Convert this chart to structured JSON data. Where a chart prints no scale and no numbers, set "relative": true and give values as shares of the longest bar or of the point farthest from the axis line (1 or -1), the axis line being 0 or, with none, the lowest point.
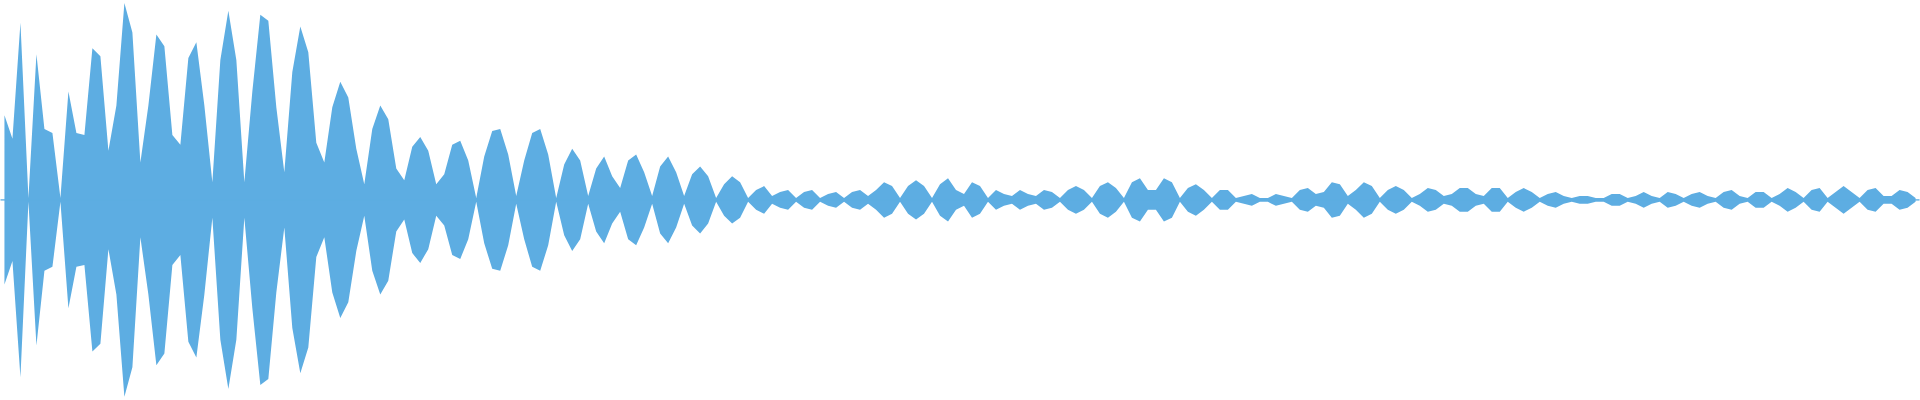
{
  "chart_data": {
    "type": "area",
    "relative": true,
    "categories": [
      null,
      null,
      null,
      null,
      null,
      null,
      null,
      null,
      null,
      null,
      null,
      null,
      null,
      null,
      null,
      null,
      null,
      null,
      null,
      null,
      null,
      null,
      null,
      null,
      null,
      null,
      null,
      null,
      null,
      null,
      null,
      null,
      null,
      null,
      null,
      null,
      null,
      null,
      null,
      null,
      null,
      null,
      null,
      null,
      null,
      null,
      null,
      null,
      null,
      null,
      null,
      null,
      null,
      null,
      null,
      null,
      null,
      null,
      null,
      null,
      null,
      null,
      null,
      null,
      null,
      null,
      null,
      null,
      null,
      null,
      null,
      null,
      null,
      null,
      null,
      null,
      null,
      null,
      null,
      null,
      null,
      null,
      null,
      null,
      null,
      null,
      null,
      null,
      null,
      null,
      null,
      null,
      null,
      null,
      null,
      null,
      null,
      null,
      null,
      null,
      null,
      null,
      null,
      null,
      null,
      null,
      null,
      null,
      null,
      null,
      null,
      null,
      null,
      null,
      null,
      null,
      null,
      null,
      null,
      null,
      null,
      null,
      null,
      null,
      null,
      null,
      null,
      null,
      null,
      null,
      null,
      null,
      null,
      null,
      null,
      null,
      null,
      null,
      null,
      null,
      null,
      null,
      null,
      null,
      null,
      null,
      null,
      null,
      null,
      null,
      null,
      null,
      null,
      null,
      null,
      null,
      null,
      null,
      null,
      null,
      null,
      null,
      null,
      null,
      null,
      null,
      null,
      null,
      null,
      null,
      null,
      null,
      null,
      null,
      null,
      null,
      null,
      null,
      null,
      null,
      null,
      null,
      null,
      null,
      null,
      null,
      null,
      null,
      null,
      null,
      null,
      null,
      null,
      null,
      null,
      null,
      null,
      null,
      null,
      null,
      null,
      null,
      null,
      null,
      null,
      null,
      null,
      null,
      null,
      null,
      null,
      null,
      null,
      null,
      null,
      null,
      null,
      null,
      null,
      null,
      null,
      null,
      null,
      null,
      null,
      null,
      null,
      null,
      null,
      null,
      null,
      null,
      null,
      null,
      null,
      null,
      null,
      null,
      null,
      null
    ],
    "ref_lines": [
      {
        "axis": "y",
        "value": 0,
        "color": "#5dade2"
      }
    ],
    "series": [
      {
        "color": "#5dade2",
        "values": [
          0.43,
          0.31,
          0.9,
          0.01,
          0.74,
          0.36,
          0.34,
          0.01,
          0.55,
          0.34,
          0.33,
          0.77,
          0.73,
          0.25,
          0.48,
          1.0,
          0.85,
          0.19,
          0.48,
          0.84,
          0.78,
          0.33,
          0.28,
          0.72,
          0.8,
          0.48,
          0.09,
          0.71,
          0.96,
          0.71,
          0.09,
          0.55,
          0.94,
          0.91,
          0.47,
          0.14,
          0.65,
          0.88,
          0.75,
          0.29,
          0.19,
          0.47,
          0.6,
          0.52,
          0.26,
          0.08,
          0.36,
          0.48,
          0.41,
          0.16,
          0.1,
          0.27,
          0.32,
          0.25,
          0.08,
          0.13,
          0.28,
          0.3,
          0.2,
          0.01,
          0.22,
          0.35,
          0.36,
          0.23,
          0.02,
          0.2,
          0.34,
          0.36,
          0.23,
          0.01,
          0.18,
          0.26,
          0.2,
          0.02,
          0.16,
          0.22,
          0.12,
          0.06,
          0.2,
          0.23,
          0.14,
          0.02,
          0.17,
          0.22,
          0.14,
          0.02,
          0.13,
          0.17,
          0.12,
          0.01,
          0.08,
          0.12,
          0.09,
          0.01,
          0.05,
          0.07,
          0.02,
          0.04,
          0.05,
          0.01,
          0.04,
          0.05,
          0.01,
          0.03,
          0.04,
          0.01,
          0.04,
          0.05,
          0.02,
          0.05,
          0.09,
          0.07,
          0.01,
          0.07,
          0.1,
          0.07,
          0.01,
          0.08,
          0.11,
          0.05,
          0.03,
          0.09,
          0.07,
          0.01,
          0.05,
          0.03,
          0.02,
          0.05,
          0.03,
          0.02,
          0.05,
          0.04,
          0.01,
          0.05,
          0.07,
          0.05,
          0.01,
          0.07,
          0.09,
          0.06,
          0.01,
          0.09,
          0.11,
          0.05,
          0.05,
          0.11,
          0.09,
          0.01,
          0.06,
          0.08,
          0.05,
          0.01,
          0.05,
          0.05,
          0.01,
          0.02,
          0.03,
          0.01,
          0.01,
          0.03,
          0.02,
          0.01,
          0.05,
          0.06,
          0.03,
          0.04,
          0.09,
          0.08,
          0.02,
          0.05,
          0.09,
          0.07,
          0.01,
          0.05,
          0.07,
          0.05,
          0.01,
          0.03,
          0.06,
          0.05,
          0.02,
          0.03,
          0.06,
          0.06,
          0.03,
          0.02,
          0.06,
          0.06,
          0.01,
          0.04,
          0.06,
          0.04,
          0.01,
          0.03,
          0.04,
          0.02,
          0.01,
          0.02,
          0.02,
          0.01,
          0.01,
          0.03,
          0.03,
          0.01,
          0.02,
          0.04,
          0.02,
          0.01,
          0.04,
          0.03,
          0.01,
          0.03,
          0.04,
          0.02,
          0.01,
          0.04,
          0.05,
          0.02,
          0.01,
          0.04,
          0.04,
          0.01,
          0.03,
          0.06,
          0.04,
          0.01,
          0.05,
          0.06,
          0.01,
          0.04,
          0.07,
          0.04,
          0.01,
          0.05,
          0.06,
          0.02,
          0.02,
          0.05,
          0.04,
          0.01
        ]
      },
      {
        "color": "#5dade2",
        "values": [
          -0.43,
          -0.31,
          -0.9,
          -0.01,
          -0.74,
          -0.36,
          -0.34,
          -0.01,
          -0.55,
          -0.34,
          -0.33,
          -0.77,
          -0.73,
          -0.25,
          -0.48,
          -1.0,
          -0.85,
          -0.19,
          -0.48,
          -0.84,
          -0.78,
          -0.33,
          -0.28,
          -0.72,
          -0.8,
          -0.48,
          -0.09,
          -0.71,
          -0.96,
          -0.71,
          -0.09,
          -0.55,
          -0.94,
          -0.91,
          -0.47,
          -0.14,
          -0.65,
          -0.88,
          -0.75,
          -0.29,
          -0.19,
          -0.47,
          -0.6,
          -0.52,
          -0.26,
          -0.08,
          -0.36,
          -0.48,
          -0.41,
          -0.16,
          -0.1,
          -0.27,
          -0.32,
          -0.25,
          -0.08,
          -0.13,
          -0.28,
          -0.3,
          -0.2,
          -0.01,
          -0.22,
          -0.35,
          -0.36,
          -0.23,
          -0.02,
          -0.2,
          -0.34,
          -0.36,
          -0.23,
          -0.01,
          -0.18,
          -0.26,
          -0.2,
          -0.02,
          -0.16,
          -0.22,
          -0.12,
          -0.06,
          -0.2,
          -0.23,
          -0.14,
          -0.02,
          -0.17,
          -0.22,
          -0.14,
          -0.02,
          -0.13,
          -0.17,
          -0.12,
          -0.01,
          -0.08,
          -0.12,
          -0.09,
          -0.01,
          -0.05,
          -0.07,
          -0.02,
          -0.04,
          -0.05,
          -0.01,
          -0.04,
          -0.05,
          -0.01,
          -0.03,
          -0.04,
          -0.01,
          -0.04,
          -0.05,
          -0.02,
          -0.05,
          -0.09,
          -0.07,
          -0.01,
          -0.07,
          -0.1,
          -0.07,
          -0.01,
          -0.08,
          -0.11,
          -0.05,
          -0.03,
          -0.09,
          -0.07,
          -0.01,
          -0.05,
          -0.03,
          -0.02,
          -0.05,
          -0.03,
          -0.02,
          -0.05,
          -0.04,
          -0.01,
          -0.05,
          -0.07,
          -0.05,
          -0.01,
          -0.07,
          -0.09,
          -0.06,
          -0.01,
          -0.09,
          -0.11,
          -0.05,
          -0.05,
          -0.11,
          -0.09,
          -0.01,
          -0.06,
          -0.08,
          -0.05,
          -0.01,
          -0.05,
          -0.05,
          -0.01,
          -0.02,
          -0.03,
          -0.01,
          -0.01,
          -0.03,
          -0.02,
          -0.01,
          -0.05,
          -0.06,
          -0.03,
          -0.04,
          -0.09,
          -0.08,
          -0.02,
          -0.05,
          -0.09,
          -0.07,
          -0.01,
          -0.05,
          -0.07,
          -0.05,
          -0.01,
          -0.03,
          -0.06,
          -0.05,
          -0.02,
          -0.03,
          -0.06,
          -0.06,
          -0.03,
          -0.02,
          -0.06,
          -0.06,
          -0.01,
          -0.04,
          -0.06,
          -0.04,
          -0.01,
          -0.03,
          -0.04,
          -0.02,
          -0.01,
          -0.02,
          -0.02,
          -0.01,
          -0.01,
          -0.03,
          -0.03,
          -0.01,
          -0.02,
          -0.04,
          -0.02,
          -0.01,
          -0.04,
          -0.03,
          -0.01,
          -0.03,
          -0.04,
          -0.02,
          -0.01,
          -0.04,
          -0.05,
          -0.02,
          -0.01,
          -0.04,
          -0.04,
          -0.01,
          -0.03,
          -0.06,
          -0.04,
          -0.01,
          -0.05,
          -0.06,
          -0.01,
          -0.04,
          -0.07,
          -0.04,
          -0.01,
          -0.05,
          -0.06,
          -0.02,
          -0.02,
          -0.05,
          -0.04,
          -0.01
        ]
      }
    ]
  }
}
